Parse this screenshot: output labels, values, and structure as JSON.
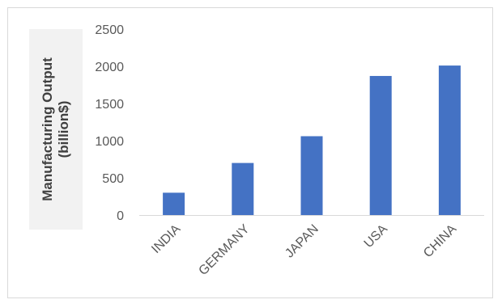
{
  "chart_data": {
    "type": "bar",
    "ylabel": "Manufacturing Output (billion$)",
    "ylabel_lines": [
      "Manufacturing Output",
      "(billion$)"
    ],
    "categories": [
      "INDIA",
      "GERMANY",
      "JAPAN",
      "USA",
      "CHINA"
    ],
    "values": [
      300,
      700,
      1060,
      1870,
      2010
    ],
    "ylim": [
      0,
      2500
    ],
    "yticks": [
      0,
      500,
      1000,
      1500,
      2000,
      2500
    ],
    "grid": false,
    "legend": "none",
    "bar_color": "#4472c4",
    "axis_color": "#d9d9d9",
    "text_color": "#595959"
  }
}
